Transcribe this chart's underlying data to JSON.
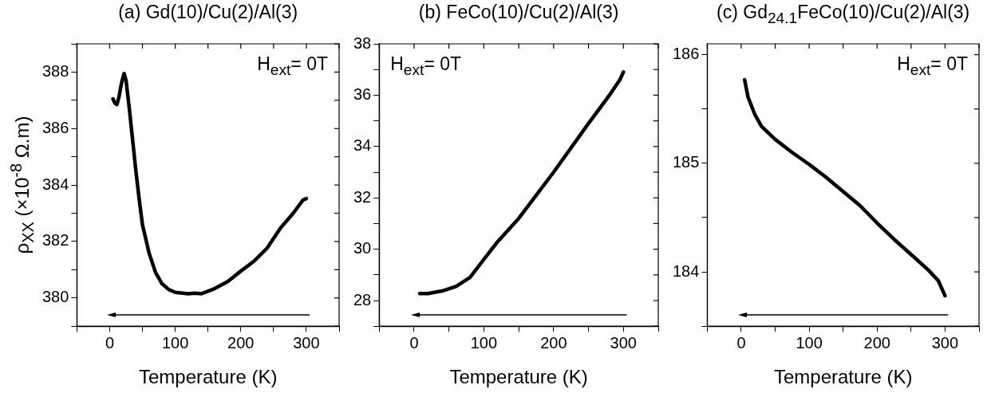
{
  "chart_data": [
    {
      "type": "line",
      "title": "(a) Gd(10)/Cu(2)/Al(3)",
      "xlabel": "Temperature (K)",
      "ylabel": "ρ$_{XX}$ (×10$^{-8}$ Ω.m)",
      "annotations": [
        "H$_{ext}$= 0T"
      ],
      "xlim": [
        -50,
        350
      ],
      "xticks": [
        {
          "value": -50,
          "label": null
        },
        0,
        {
          "value": 50,
          "label": null
        },
        100,
        {
          "value": 150,
          "label": null
        },
        200,
        {
          "value": 250,
          "label": null
        },
        300,
        {
          "value": 350,
          "label": null
        }
      ],
      "ylim": [
        379,
        389
      ],
      "yticks": [
        {
          "value": 379,
          "label": null
        },
        380,
        {
          "value": 381,
          "label": null
        },
        382,
        {
          "value": 383,
          "label": null
        },
        384,
        {
          "value": 385,
          "label": null
        },
        386,
        {
          "value": 387,
          "label": null
        },
        388,
        {
          "value": 389,
          "label": null
        }
      ],
      "series": [
        {
          "color": "#000000",
          "x": [
            5,
            8,
            11,
            14,
            18,
            22,
            25,
            28,
            30,
            35,
            40,
            45,
            50,
            60,
            70,
            80,
            90,
            100,
            120,
            130,
            140,
            160,
            180,
            200,
            220,
            240,
            260,
            280,
            295,
            300
          ],
          "values": [
            387.05,
            386.9,
            386.85,
            387.1,
            387.6,
            387.95,
            387.7,
            387.1,
            386.7,
            385.6,
            384.5,
            383.5,
            382.6,
            381.6,
            380.9,
            380.5,
            380.3,
            380.2,
            380.15,
            380.17,
            380.15,
            380.33,
            380.58,
            380.95,
            381.3,
            381.76,
            382.46,
            383.0,
            383.47,
            383.52
          ]
        }
      ]
    },
    {
      "type": "line",
      "title": "(b) FeCo(10)/Cu(2)/Al(3)",
      "xlabel": "Temperature (K)",
      "annotations": [
        "H$_{ext}$= 0T"
      ],
      "xlim": [
        -50,
        350
      ],
      "xticks": [
        {
          "value": -50,
          "label": null
        },
        0,
        {
          "value": 50,
          "label": null
        },
        100,
        {
          "value": 150,
          "label": null
        },
        200,
        {
          "value": 250,
          "label": null
        },
        300,
        {
          "value": 350,
          "label": null
        }
      ],
      "ylim": [
        27,
        38
      ],
      "yticks": [
        {
          "value": 27,
          "label": null
        },
        28,
        {
          "value": 29,
          "label": null
        },
        30,
        {
          "value": 31,
          "label": null
        },
        32,
        {
          "value": 33,
          "label": null
        },
        34,
        {
          "value": 35,
          "label": null
        },
        36,
        {
          "value": 37,
          "label": null
        },
        38
      ],
      "series": [
        {
          "color": "#000000",
          "x": [
            8,
            20,
            40,
            60,
            80,
            100,
            120,
            150,
            200,
            250,
            280,
            295,
            300
          ],
          "values": [
            28.27,
            28.27,
            28.37,
            28.55,
            28.9,
            29.6,
            30.3,
            31.2,
            33.0,
            34.9,
            36.0,
            36.6,
            36.9
          ]
        }
      ]
    },
    {
      "type": "line",
      "title": "(c) Gd$_{24.1}$FeCo(10)/Cu(2)/Al(3)",
      "xlabel": "Temperature (K)",
      "annotations": [
        "H$_{ext}$= 0T"
      ],
      "xlim": [
        -50,
        350
      ],
      "xticks": [
        {
          "value": -50,
          "label": null
        },
        0,
        {
          "value": 50,
          "label": null
        },
        100,
        {
          "value": 150,
          "label": null
        },
        200,
        {
          "value": 250,
          "label": null
        },
        300,
        {
          "value": 350,
          "label": null
        }
      ],
      "ylim": [
        183.5,
        186.1
      ],
      "yticks": [
        {
          "value": 183.5,
          "label": null
        },
        184,
        {
          "value": 184.5,
          "label": null
        },
        185,
        {
          "value": 185.5,
          "label": null
        },
        186
      ],
      "series": [
        {
          "color": "#000000",
          "x": [
            5,
            10,
            20,
            30,
            50,
            75,
            100,
            125,
            150,
            175,
            200,
            225,
            250,
            275,
            290,
            300
          ],
          "values": [
            185.77,
            185.61,
            185.45,
            185.34,
            185.22,
            185.1,
            184.99,
            184.87,
            184.74,
            184.61,
            184.45,
            184.3,
            184.16,
            184.02,
            183.92,
            183.78
          ]
        }
      ]
    }
  ]
}
